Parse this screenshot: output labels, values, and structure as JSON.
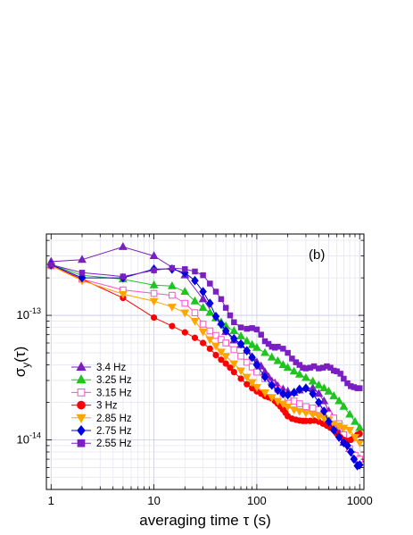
{
  "chart_data": {
    "type": "line",
    "title": "",
    "panel_label": "(b)",
    "xlabel": "averaging time τ (s)",
    "ylabel": {
      "main": "σ",
      "sub": "y",
      "rest": "(τ)"
    },
    "xscale": "log",
    "yscale": "log",
    "xlim": [
      0.9,
      1100
    ],
    "ylim": [
      4e-15,
      4.5e-13
    ],
    "grid": true,
    "legend_position": "lower-left",
    "x_ticks": [
      {
        "value": 1,
        "label": "1"
      },
      {
        "value": 10,
        "label": "10"
      },
      {
        "value": 100,
        "label": "100"
      },
      {
        "value": 1000,
        "label": "1000"
      }
    ],
    "y_ticks": [
      {
        "value": 1e-14,
        "base": "10",
        "exp": "-14"
      },
      {
        "value": 1e-13,
        "base": "10",
        "exp": "-13"
      }
    ],
    "series": [
      {
        "name": "3.4 Hz",
        "color": "#7a1fc2",
        "marker": "triangle-up",
        "filled": true,
        "x": [
          1,
          2,
          5,
          10,
          20,
          30,
          40,
          50,
          60,
          70,
          80,
          90,
          100,
          110,
          120,
          130,
          140,
          150,
          160,
          180,
          200,
          230,
          260,
          300,
          350,
          400,
          450,
          500,
          560,
          630,
          700,
          800,
          900,
          1000
        ],
        "y": [
          2.7e-13,
          2.8e-13,
          3.55e-13,
          3e-13,
          2.1e-13,
          1.35e-13,
          9.5e-14,
          7.4e-14,
          6.3e-14,
          5.8e-14,
          5.2e-14,
          4.6e-14,
          4.2e-14,
          3.9e-14,
          3.5e-14,
          3.2e-14,
          2.95e-14,
          2.85e-14,
          2.7e-14,
          2.55e-14,
          2.45e-14,
          2.4e-14,
          2.5e-14,
          2.6e-14,
          2.6e-14,
          2.35e-14,
          2.05e-14,
          1.7e-14,
          1.4e-14,
          1.15e-14,
          9.5e-15,
          8.5e-15,
          7.5e-15,
          7e-15
        ]
      },
      {
        "name": "3.25 Hz",
        "color": "#1fc41f",
        "marker": "triangle-up",
        "filled": true,
        "x": [
          1,
          2,
          5,
          10,
          15,
          20,
          25,
          30,
          35,
          40,
          45,
          50,
          60,
          70,
          80,
          90,
          100,
          120,
          140,
          160,
          180,
          200,
          230,
          260,
          300,
          350,
          400,
          450,
          500,
          560,
          630,
          700,
          800,
          900,
          1000
        ],
        "y": [
          2.55e-13,
          2.1e-13,
          1.95e-13,
          1.75e-13,
          1.72e-13,
          1.55e-13,
          1.3e-13,
          1.15e-13,
          1.05e-13,
          9.5e-14,
          8.8e-14,
          8.2e-14,
          7.5e-14,
          6.8e-14,
          6.2e-14,
          5.8e-14,
          5.5e-14,
          5e-14,
          4.6e-14,
          4.3e-14,
          4e-14,
          3.8e-14,
          3.55e-14,
          3.35e-14,
          3.15e-14,
          2.95e-14,
          2.75e-14,
          2.6e-14,
          2.45e-14,
          2.25e-14,
          2.05e-14,
          1.85e-14,
          1.6e-14,
          1.4e-14,
          1.25e-14
        ]
      },
      {
        "name": "3.15 Hz",
        "color": "#ff4fc6",
        "marker": "square",
        "filled": false,
        "x": [
          1,
          2,
          5,
          10,
          15,
          20,
          25,
          30,
          35,
          40,
          45,
          50,
          60,
          70,
          80,
          90,
          100,
          120,
          140,
          160,
          180,
          200,
          230,
          260,
          300,
          350,
          400,
          450,
          500,
          560,
          630,
          700,
          800,
          900,
          1000
        ],
        "y": [
          2.5e-13,
          1.95e-13,
          1.6e-13,
          1.5e-13,
          1.45e-13,
          1.25e-13,
          1.05e-13,
          8.5e-14,
          7.5e-14,
          6.9e-14,
          6.4e-14,
          6e-14,
          5.3e-14,
          4.7e-14,
          4.2e-14,
          3.85e-14,
          3.5e-14,
          3.1e-14,
          2.8e-14,
          2.55e-14,
          2.35e-14,
          2.2e-14,
          2.05e-14,
          1.95e-14,
          1.85e-14,
          1.8e-14,
          1.75e-14,
          1.7e-14,
          1.6e-14,
          1.5e-14,
          1.35e-14,
          1.1e-14,
          8.5e-15,
          7.5e-15,
          7e-15
        ]
      },
      {
        "name": "3 Hz",
        "color": "#ff0000",
        "marker": "circle",
        "filled": true,
        "x": [
          1,
          2,
          5,
          10,
          15,
          20,
          25,
          30,
          35,
          40,
          45,
          50,
          55,
          60,
          70,
          80,
          90,
          100,
          110,
          120,
          130,
          140,
          150,
          160,
          170,
          180,
          190,
          200,
          220,
          240,
          260,
          280,
          300,
          330,
          360,
          400,
          440,
          480,
          520,
          560,
          600,
          650,
          700,
          760,
          820,
          880,
          950,
          1000
        ],
        "y": [
          2.5e-13,
          1.95e-13,
          1.38e-13,
          9.6e-14,
          8.2e-14,
          7.3e-14,
          6.6e-14,
          6e-14,
          5.4e-14,
          4.8e-14,
          4.4e-14,
          4.1e-14,
          3.8e-14,
          3.5e-14,
          3.1e-14,
          2.8e-14,
          2.6e-14,
          2.45e-14,
          2.35e-14,
          2.25e-14,
          2.2e-14,
          2.15e-14,
          2.05e-14,
          1.95e-14,
          1.85e-14,
          1.75e-14,
          1.65e-14,
          1.55e-14,
          1.48e-14,
          1.45e-14,
          1.43e-14,
          1.42e-14,
          1.42e-14,
          1.42e-14,
          1.43e-14,
          1.4e-14,
          1.35e-14,
          1.3e-14,
          1.25e-14,
          1.2e-14,
          1.12e-14,
          1.05e-14,
          1e-14,
          9.8e-15,
          1e-14,
          1.05e-14,
          1.1e-14,
          1.12e-14
        ]
      },
      {
        "name": "2.85 Hz",
        "color": "#ffa500",
        "marker": "triangle-down",
        "filled": true,
        "x": [
          1,
          2,
          5,
          10,
          15,
          20,
          25,
          30,
          35,
          40,
          45,
          50,
          60,
          70,
          80,
          90,
          100,
          120,
          140,
          160,
          180,
          200,
          230,
          260,
          300,
          350,
          400,
          450,
          500,
          560,
          630,
          700,
          800,
          900,
          1000
        ],
        "y": [
          2.5e-13,
          1.9e-13,
          1.48e-13,
          1.3e-13,
          1.17e-13,
          1.05e-13,
          9e-14,
          7.4e-14,
          6.4e-14,
          5.7e-14,
          5.1e-14,
          4.7e-14,
          4.1e-14,
          3.6e-14,
          3.2e-14,
          2.9e-14,
          2.65e-14,
          2.4e-14,
          2.2e-14,
          2.05e-14,
          1.95e-14,
          1.85e-14,
          1.75e-14,
          1.7e-14,
          1.65e-14,
          1.6e-14,
          1.55e-14,
          1.5e-14,
          1.45e-14,
          1.35e-14,
          1.3e-14,
          1.25e-14,
          1.2e-14,
          1.05e-14,
          9.5e-15
        ]
      },
      {
        "name": "2.75 Hz",
        "color": "#0000e0",
        "marker": "diamond",
        "filled": true,
        "x": [
          1,
          2,
          5,
          10,
          15,
          20,
          25,
          30,
          35,
          40,
          45,
          50,
          60,
          70,
          80,
          90,
          100,
          120,
          140,
          160,
          180,
          200,
          230,
          260,
          300,
          350,
          400,
          450,
          500,
          560,
          630,
          700,
          760,
          820,
          880,
          950,
          1000
        ],
        "y": [
          2.55e-13,
          2e-13,
          2e-13,
          2.35e-13,
          2.35e-13,
          2.2e-13,
          1.9e-13,
          1.55e-13,
          1.25e-13,
          9.8e-14,
          8.5e-14,
          7.5e-14,
          6.5e-14,
          5.9e-14,
          5.2e-14,
          4.6e-14,
          4e-14,
          3.2e-14,
          2.75e-14,
          2.5e-14,
          2.35e-14,
          2.3e-14,
          2.4e-14,
          2.55e-14,
          2.6e-14,
          2.35e-14,
          2e-14,
          1.7e-14,
          1.4e-14,
          1.2e-14,
          1.05e-14,
          9.5e-15,
          9e-15,
          8e-15,
          7e-15,
          6.2e-15,
          6.3e-15
        ]
      },
      {
        "name": "2.55 Hz",
        "color": "#7a1fc2",
        "marker": "square",
        "filled": true,
        "x": [
          1,
          2,
          5,
          10,
          15,
          20,
          25,
          30,
          35,
          40,
          45,
          50,
          55,
          60,
          70,
          80,
          90,
          100,
          110,
          120,
          130,
          140,
          150,
          160,
          180,
          200,
          220,
          240,
          260,
          280,
          300,
          330,
          360,
          400,
          440,
          480,
          520,
          560,
          600,
          650,
          700,
          760,
          820,
          880,
          950,
          1000
        ],
        "y": [
          2.55e-13,
          2.2e-13,
          2.05e-13,
          2.3e-13,
          2.4e-13,
          2.35e-13,
          2.25e-13,
          2.1e-13,
          1.8e-13,
          1.55e-13,
          1.35e-13,
          1.15e-13,
          1e-13,
          8.8e-14,
          8e-14,
          7.8e-14,
          7.9e-14,
          7.7e-14,
          7e-14,
          6.2e-14,
          5.9e-14,
          5.6e-14,
          5.5e-14,
          5.6e-14,
          5.4e-14,
          5e-14,
          4.5e-14,
          4.2e-14,
          4e-14,
          3.8e-14,
          3.75e-14,
          3.8e-14,
          3.9e-14,
          3.75e-14,
          3.8e-14,
          3.9e-14,
          3.8e-14,
          3.6e-14,
          3.55e-14,
          3.4e-14,
          3.1e-14,
          2.85e-14,
          2.7e-14,
          2.65e-14,
          2.6e-14,
          2.6e-14
        ]
      }
    ]
  }
}
